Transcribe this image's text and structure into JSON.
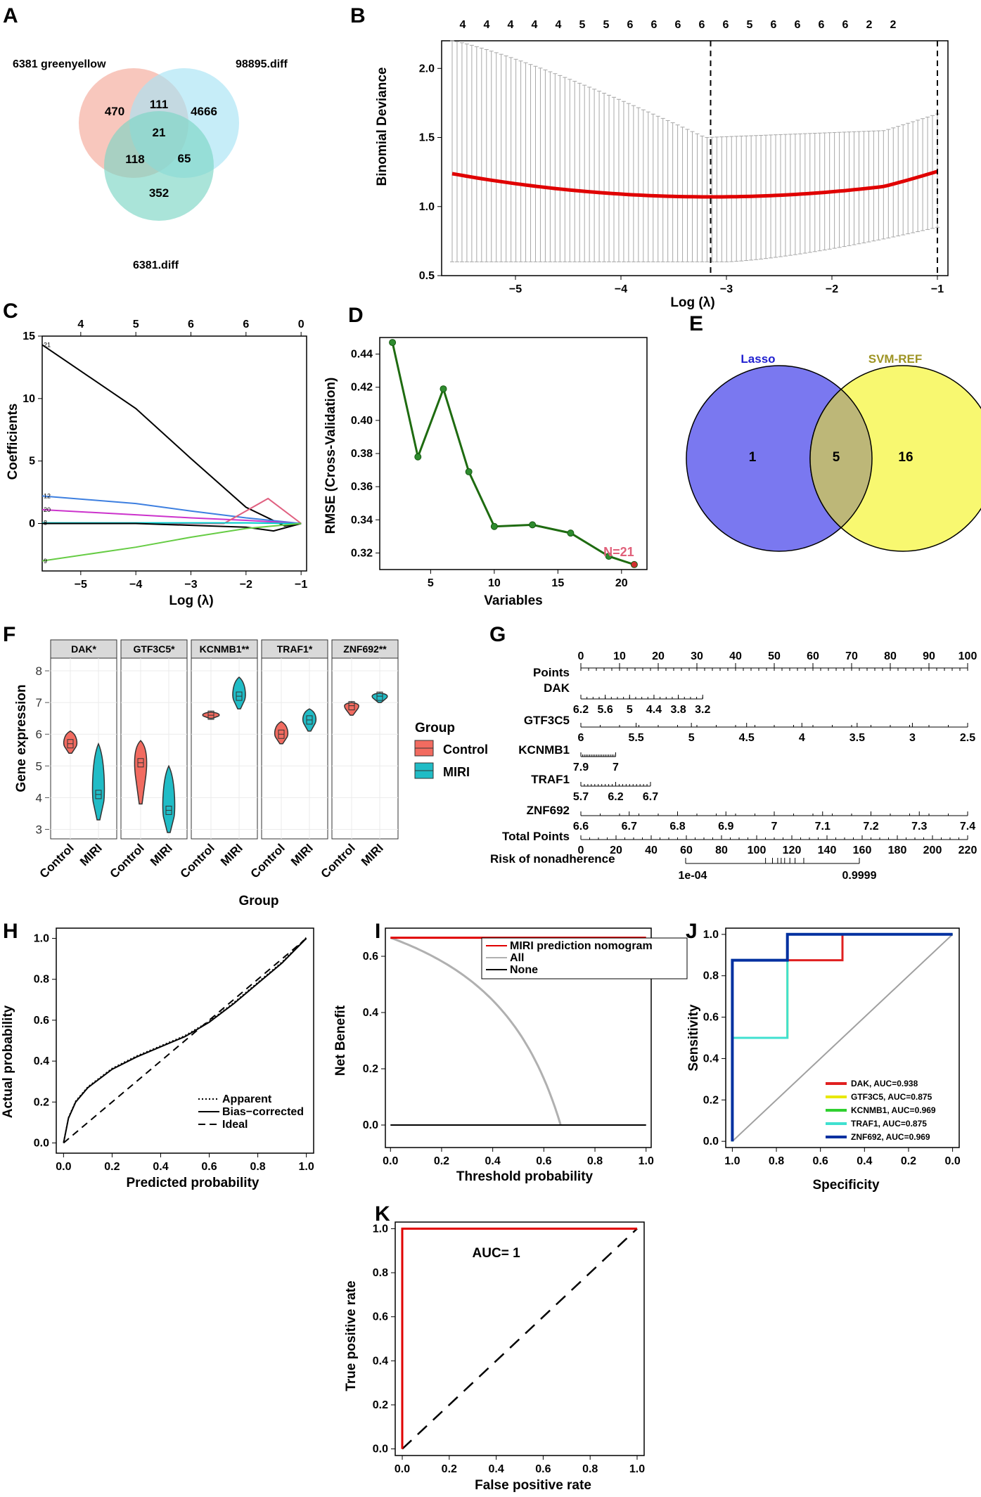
{
  "figure": {
    "panel_labels": [
      "A",
      "B",
      "C",
      "D",
      "E",
      "F",
      "G",
      "H",
      "I",
      "J",
      "K"
    ]
  },
  "chart_data": [
    {
      "panel": "A",
      "type": "venn",
      "sets": [
        "6381 greenyellow",
        "98895.diff",
        "6381.diff"
      ],
      "colors": [
        "#f4a99a",
        "#a8e4f4",
        "#7dd6c4"
      ],
      "regions": {
        "only_greenyellow": 470,
        "only_98895": 4666,
        "only_6381diff": 352,
        "greenyellow_98895": 111,
        "greenyellow_6381diff": 118,
        "98895_6381diff": 65,
        "all": 21
      },
      "labels": {
        "only_greenyellow": "470",
        "only_98895": "4666",
        "only_6381diff": "352",
        "greenyellow_98895": "111",
        "greenyellow_6381diff": "118",
        "98895_6381diff": "65",
        "all": "21"
      }
    },
    {
      "panel": "B",
      "type": "line",
      "xlabel": "Log (λ)",
      "ylabel": "Binomial Deviance",
      "xlim": [
        -5.7,
        -0.9
      ],
      "ylim": [
        0.5,
        2.2
      ],
      "xticks": [
        "−5",
        "−4",
        "−3",
        "−2",
        "−1"
      ],
      "xtick_values": [
        -5,
        -4,
        -3,
        -2,
        -1
      ],
      "yticks": [
        "0.5",
        "1.0",
        "1.5",
        "2.0"
      ],
      "ytick_values": [
        0.5,
        1.0,
        1.5,
        2.0
      ],
      "top_ticks": [
        "4",
        "4",
        "4",
        "4",
        "4",
        "5",
        "5",
        "6",
        "6",
        "6",
        "6",
        "6",
        "5",
        "6",
        "6",
        "6",
        "6",
        "2",
        "2"
      ],
      "vlines": [
        -3.15,
        -1.0
      ],
      "series_color": "#e00000",
      "errorbar_color": "#a8a8a8"
    },
    {
      "panel": "C",
      "type": "line",
      "xlabel": "Log (λ)",
      "ylabel": "Coefficients",
      "xlim": [
        -5.7,
        -0.9
      ],
      "ylim": [
        -3.8,
        15
      ],
      "xticks": [
        "−5",
        "−4",
        "−3",
        "−2",
        "−1"
      ],
      "xtick_values": [
        -5,
        -4,
        -3,
        -2,
        -1
      ],
      "yticks": [
        "0",
        "5",
        "10",
        "15"
      ],
      "ytick_values": [
        0,
        5,
        10,
        15
      ],
      "top_ticks": [
        "4",
        "5",
        "6",
        "6",
        "0"
      ],
      "top_tick_values": [
        -5,
        -4,
        -3,
        -2,
        -1
      ],
      "line_labels": [
        "21",
        "12",
        "20",
        "8",
        "9"
      ],
      "series": [
        {
          "name": "21",
          "color": "#000000",
          "x": [
            -5.7,
            -4,
            -3,
            -2,
            -1.3,
            -1
          ],
          "y": [
            14.3,
            9.2,
            5.2,
            1.3,
            -0.2,
            0
          ]
        },
        {
          "name": "12",
          "color": "#3d7fe0",
          "x": [
            -5.7,
            -4,
            -3,
            -2,
            -1
          ],
          "y": [
            2.2,
            1.6,
            1.0,
            0.45,
            0
          ]
        },
        {
          "name": "20",
          "color": "#cc33cc",
          "x": [
            -5.7,
            -4,
            -3,
            -2,
            -1
          ],
          "y": [
            1.1,
            0.7,
            0.45,
            0.25,
            0
          ]
        },
        {
          "name": "pink",
          "color": "#e06080",
          "x": [
            -5.7,
            -2.4,
            -1.6,
            -1
          ],
          "y": [
            0,
            0,
            2.0,
            0
          ]
        },
        {
          "name": "8",
          "color": "#00cccc",
          "x": [
            -5.7,
            -4,
            -2,
            -1
          ],
          "y": [
            0.05,
            0.05,
            0.05,
            0
          ]
        },
        {
          "name": "black2",
          "color": "#000000",
          "x": [
            -5.7,
            -4,
            -2,
            -1.5,
            -1
          ],
          "y": [
            0,
            0,
            -0.3,
            -0.6,
            0
          ]
        },
        {
          "name": "9",
          "color": "#66cc44",
          "x": [
            -5.7,
            -4,
            -3,
            -2,
            -1
          ],
          "y": [
            -3.0,
            -1.9,
            -1.1,
            -0.4,
            0
          ]
        }
      ]
    },
    {
      "panel": "D",
      "type": "line",
      "xlabel": "Variables",
      "ylabel": "RMSE (Cross-Validation)",
      "xlim": [
        1,
        22
      ],
      "ylim": [
        0.31,
        0.45
      ],
      "xticks": [
        "5",
        "10",
        "15",
        "20"
      ],
      "xtick_values": [
        5,
        10,
        15,
        20
      ],
      "yticks": [
        "0.32",
        "0.34",
        "0.36",
        "0.38",
        "0.40",
        "0.42",
        "0.44"
      ],
      "ytick_values": [
        0.32,
        0.34,
        0.36,
        0.38,
        0.4,
        0.42,
        0.44
      ],
      "x": [
        2,
        4,
        6,
        8,
        10,
        13,
        16,
        19,
        21
      ],
      "values": [
        0.447,
        0.378,
        0.419,
        0.369,
        0.336,
        0.337,
        0.332,
        0.318,
        0.313
      ],
      "annotation": "N=21",
      "line_color": "#1e6b10"
    },
    {
      "panel": "E",
      "type": "venn",
      "sets": [
        "Lasso",
        "SVM-REF"
      ],
      "colors": [
        "#7a78f0",
        "#f8f870"
      ],
      "regions": {
        "only_lasso": 1,
        "both": 5,
        "only_svm": 16
      },
      "labels": {
        "only_lasso": "1",
        "both": "5",
        "only_svm": "16"
      }
    },
    {
      "panel": "F",
      "type": "violin",
      "xlabel": "Group",
      "ylabel": "Gene expression",
      "ylim": [
        2.7,
        8.4
      ],
      "yticks": [
        "3",
        "4",
        "5",
        "6",
        "7",
        "8"
      ],
      "ytick_values": [
        3,
        4,
        5,
        6,
        7,
        8
      ],
      "groups": [
        "Control",
        "MIRI"
      ],
      "facets": [
        {
          "label": "DAK*",
          "control": [
            5.4,
            5.7,
            6.1
          ],
          "miri": [
            3.3,
            4.1,
            5.7
          ]
        },
        {
          "label": "GTF3C5*",
          "control": [
            3.8,
            5.1,
            5.8
          ],
          "miri": [
            2.9,
            3.6,
            5.0
          ]
        },
        {
          "label": "KCNMB1**",
          "control": [
            6.5,
            6.6,
            6.7
          ],
          "miri": [
            6.8,
            7.2,
            7.8
          ]
        },
        {
          "label": "TRAF1*",
          "control": [
            5.7,
            6.0,
            6.4
          ],
          "miri": [
            6.1,
            6.45,
            6.8
          ]
        },
        {
          "label": "ZNF692**",
          "control": [
            6.6,
            6.9,
            7.0
          ],
          "miri": [
            7.0,
            7.2,
            7.3
          ]
        }
      ],
      "legend_title": "Group",
      "legend_entries": [
        "Control",
        "MIRI"
      ],
      "colors": {
        "control": "#f26b60",
        "miri": "#20bcc6"
      }
    },
    {
      "panel": "G",
      "type": "nomogram",
      "rows": [
        {
          "name": "Points",
          "labels": [
            "0",
            "10",
            "20",
            "30",
            "40",
            "50",
            "60",
            "70",
            "80",
            "90",
            "100"
          ]
        },
        {
          "name": "DAK",
          "labels": [
            "6.2",
            "5.6",
            "5",
            "4.4",
            "3.8",
            "3.2"
          ]
        },
        {
          "name": "GTF3C5",
          "labels": [
            "6",
            "5.5",
            "5",
            "4.5",
            "4",
            "3.5",
            "3",
            "2.5"
          ]
        },
        {
          "name": "KCNMB1",
          "labels": [
            "7.9",
            "7"
          ]
        },
        {
          "name": "TRAF1",
          "labels": [
            "5.7",
            "6.2",
            "6.7"
          ]
        },
        {
          "name": "ZNF692",
          "labels": [
            "6.6",
            "6.7",
            "6.8",
            "6.9",
            "7",
            "7.1",
            "7.2",
            "7.3",
            "7.4"
          ]
        },
        {
          "name": "Total Points",
          "labels": [
            "0",
            "20",
            "40",
            "60",
            "80",
            "100",
            "120",
            "140",
            "160",
            "180",
            "200",
            "220"
          ]
        },
        {
          "name": "Risk of nonadherence",
          "labels": [
            "1e-04",
            "0.9999"
          ]
        }
      ]
    },
    {
      "panel": "H",
      "type": "line",
      "xlabel": "Predicted probability",
      "ylabel": "Actual probability",
      "xlim": [
        -0.03,
        1.03
      ],
      "ylim": [
        -0.05,
        1.05
      ],
      "xticks": [
        "0.0",
        "0.2",
        "0.4",
        "0.6",
        "0.8",
        "1.0"
      ],
      "xtick_values": [
        0,
        0.2,
        0.4,
        0.6,
        0.8,
        1.0
      ],
      "yticks": [
        "0.0",
        "0.2",
        "0.4",
        "0.6",
        "0.8",
        "1.0"
      ],
      "ytick_values": [
        0,
        0.2,
        0.4,
        0.6,
        0.8,
        1.0
      ],
      "series": [
        {
          "name": "Bias-corrected",
          "x": [
            0,
            0.02,
            0.05,
            0.1,
            0.2,
            0.3,
            0.4,
            0.5,
            0.6,
            0.7,
            0.8,
            0.9,
            1.0
          ],
          "y": [
            0.0,
            0.12,
            0.2,
            0.27,
            0.36,
            0.42,
            0.47,
            0.52,
            0.59,
            0.68,
            0.78,
            0.88,
            1.0
          ]
        }
      ],
      "legend_entries": [
        "Apparent",
        "Bias−corrected",
        "Ideal"
      ]
    },
    {
      "panel": "I",
      "type": "line",
      "xlabel": "Threshold probability",
      "ylabel": "Net Benefit",
      "xlim": [
        -0.02,
        1.02
      ],
      "ylim": [
        -0.08,
        0.7
      ],
      "xticks": [
        "0.0",
        "0.2",
        "0.4",
        "0.6",
        "0.8",
        "1.0"
      ],
      "xtick_values": [
        0,
        0.2,
        0.4,
        0.6,
        0.8,
        1.0
      ],
      "yticks": [
        "0.0",
        "0.2",
        "0.4",
        "0.6"
      ],
      "ytick_values": [
        0,
        0.2,
        0.4,
        0.6
      ],
      "prevalence": 0.666,
      "legend_entries": [
        "MIRI prediction nomogram",
        "All",
        "None"
      ],
      "colors": [
        "#e00000",
        "#b0b0b0",
        "#000000"
      ]
    },
    {
      "panel": "J",
      "type": "line",
      "xlabel": "Specificity",
      "ylabel": "Sensitivity",
      "xlim": [
        1.03,
        -0.03
      ],
      "ylim": [
        -0.03,
        1.03
      ],
      "xticks": [
        "1.0",
        "0.8",
        "0.6",
        "0.4",
        "0.2",
        "0.0"
      ],
      "xtick_values": [
        1.0,
        0.8,
        0.6,
        0.4,
        0.2,
        0.0
      ],
      "yticks": [
        "0.0",
        "0.2",
        "0.4",
        "0.6",
        "0.8",
        "1.0"
      ],
      "ytick_values": [
        0,
        0.2,
        0.4,
        0.6,
        0.8,
        1.0
      ],
      "series": [
        {
          "name": "DAK, AUC=0.938",
          "color": "#e02020",
          "x": [
            1,
            1,
            0.75,
            0.75,
            0.5,
            0.5,
            0
          ],
          "y": [
            0,
            0.875,
            0.875,
            0.875,
            0.875,
            1,
            1
          ]
        },
        {
          "name": "GTF3C5, AUC=0.875",
          "color": "#e8e800",
          "x": [
            1,
            1,
            0.75,
            0.75,
            0
          ],
          "y": [
            0,
            0.5,
            0.5,
            1,
            1
          ]
        },
        {
          "name": "KCNMB1, AUC=0.969",
          "color": "#30d030",
          "x": [
            1,
            1,
            0.75,
            0.75,
            0
          ],
          "y": [
            0,
            0.875,
            0.875,
            1,
            1
          ]
        },
        {
          "name": "TRAF1, AUC=0.875",
          "color": "#40e0d0",
          "x": [
            1,
            1,
            0.75,
            0.75,
            0
          ],
          "y": [
            0,
            0.5,
            0.5,
            1,
            1
          ]
        },
        {
          "name": "ZNF692, AUC=0.969",
          "color": "#0030a0",
          "x": [
            1,
            1,
            0.75,
            0.75,
            0
          ],
          "y": [
            0,
            0.875,
            0.875,
            1,
            1
          ]
        }
      ]
    },
    {
      "panel": "K",
      "type": "line",
      "xlabel": "False positive rate",
      "ylabel": "True positive rate",
      "xlim": [
        -0.03,
        1.03
      ],
      "ylim": [
        -0.03,
        1.03
      ],
      "xticks": [
        "0.0",
        "0.2",
        "0.4",
        "0.6",
        "0.8",
        "1.0"
      ],
      "xtick_values": [
        0,
        0.2,
        0.4,
        0.6,
        0.8,
        1.0
      ],
      "yticks": [
        "0.0",
        "0.2",
        "0.4",
        "0.6",
        "0.8",
        "1.0"
      ],
      "ytick_values": [
        0,
        0.2,
        0.4,
        0.6,
        0.8,
        1.0
      ],
      "x": [
        0,
        0,
        1
      ],
      "y": [
        0,
        1,
        1
      ],
      "annotation": "AUC= 1",
      "line_color": "#e00000"
    }
  ]
}
